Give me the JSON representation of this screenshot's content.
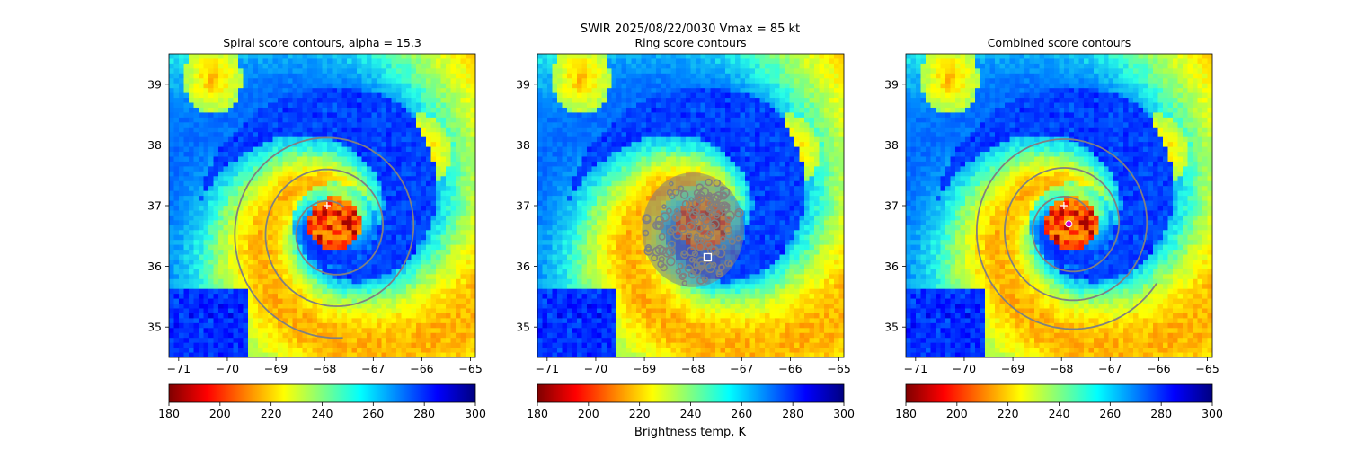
{
  "figure": {
    "suptitle_line1": "SWIR  2025/08/22/0030    Vmax = 85 kt",
    "colorbar_label": "Brightness temp, K",
    "colormap": [
      "#7f0000",
      "#ff0000",
      "#ff8000",
      "#ffff00",
      "#80ff80",
      "#00ffff",
      "#0080ff",
      "#0000ff",
      "#00007f"
    ],
    "contour_color": "#808080",
    "marker_color": "#ffffff",
    "best_center_color": "#cc00cc"
  },
  "chart_data": [
    {
      "type": "heatmap",
      "title": "Spiral score contours, alpha = 15.3",
      "xlim": [
        -71.2,
        -64.9
      ],
      "ylim": [
        34.5,
        39.5
      ],
      "xticks": [
        -71,
        -70,
        -69,
        -68,
        -67,
        -66,
        -65
      ],
      "yticks": [
        35,
        36,
        37,
        38,
        39
      ],
      "colorbar": {
        "range": [
          180,
          300
        ],
        "ticks": [
          180,
          200,
          220,
          240,
          260,
          280,
          300
        ]
      },
      "eye_center": [
        -67.8,
        36.7
      ],
      "first_guess_marker": [
        -67.95,
        37.0
      ],
      "overlay": "spiral",
      "spiral": {
        "center": [
          -67.85,
          36.6
        ],
        "start_radius_deg": 0.45,
        "growth_per_rev_deg": 0.55,
        "turns": 2.6,
        "start_angle_deg": 60
      }
    },
    {
      "type": "heatmap",
      "title": "Ring score contours",
      "xlim": [
        -71.2,
        -64.9
      ],
      "ylim": [
        34.5,
        39.5
      ],
      "xticks": [
        -71,
        -70,
        -69,
        -68,
        -67,
        -66,
        -65
      ],
      "yticks": [
        35,
        36,
        37,
        38,
        39
      ],
      "colorbar": {
        "range": [
          180,
          300
        ],
        "ticks": [
          180,
          200,
          220,
          240,
          260,
          280,
          300
        ]
      },
      "eye_center": [
        -67.8,
        36.7
      ],
      "overlay": "ring",
      "ring_region": {
        "center": [
          -68.0,
          36.6
        ],
        "radius_deg": 1.05
      },
      "ring_max_marker": [
        -67.7,
        36.15
      ]
    },
    {
      "type": "heatmap",
      "title": "Combined score contours",
      "xlim": [
        -71.2,
        -64.9
      ],
      "ylim": [
        34.5,
        39.5
      ],
      "xticks": [
        -71,
        -70,
        -69,
        -68,
        -67,
        -66,
        -65
      ],
      "yticks": [
        35,
        36,
        37,
        38,
        39
      ],
      "colorbar": {
        "range": [
          180,
          300
        ],
        "ticks": [
          180,
          200,
          220,
          240,
          260,
          280,
          300
        ]
      },
      "eye_center": [
        -67.8,
        36.7
      ],
      "first_guess_marker": [
        -67.95,
        37.0
      ],
      "best_center_marker": [
        -67.85,
        36.7
      ],
      "overlay": "spiral",
      "spiral": {
        "center": [
          -67.85,
          36.65
        ],
        "start_radius_deg": 0.45,
        "growth_per_rev_deg": 0.5,
        "turns": 2.8,
        "start_angle_deg": 40
      }
    }
  ]
}
